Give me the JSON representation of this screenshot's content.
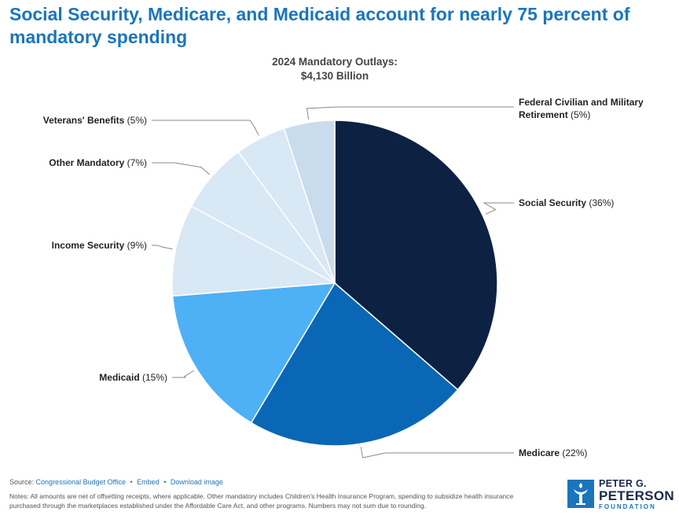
{
  "headline": "Social Security, Medicare, and Medicaid account for nearly 75 percent of mandatory spending",
  "chart_data": {
    "type": "pie",
    "title": "2024 Mandatory Outlays:",
    "subtitle": "$4,130 Billion",
    "start_angle_deg": 0,
    "direction": "clockwise",
    "slices": [
      {
        "name": "Social Security",
        "pct_label": "(36%)",
        "value": 36,
        "color": "#0d2142"
      },
      {
        "name": "Medicare",
        "pct_label": "(22%)",
        "value": 22,
        "color": "#0967b5"
      },
      {
        "name": "Medicaid",
        "pct_label": "(15%)",
        "value": 15,
        "color": "#4eb0f5"
      },
      {
        "name": "Income Security",
        "pct_label": "(9%)",
        "value": 9,
        "color": "#d9e8f5"
      },
      {
        "name": "Other Mandatory",
        "pct_label": "(7%)",
        "value": 7,
        "color": "#d9e8f5"
      },
      {
        "name": "Veterans' Benefits",
        "pct_label": "(5%)",
        "value": 5,
        "color": "#d9e8f5"
      },
      {
        "name": "Federal Civilian and Military Retirement",
        "pct_label": "(5%)",
        "value": 5,
        "color": "#c9dced",
        "name_line1": "Federal Civilian and Military",
        "name_line2": "Retirement"
      }
    ]
  },
  "footer": {
    "source_prefix": "Source:",
    "source_link": "Congressional Budget Office",
    "embed_link": "Embed",
    "download_link": "Download image",
    "separator": "•",
    "notes": "Notes: All amounts are net of offsetting receipts, where applicable. Other mandatory includes Children's Health Insurance Program, spending to subsidize health insurance purchased through the marketplaces established under the Affordable Care Act, and other programs. Numbers may not sum due to rounding."
  },
  "logo": {
    "line1": "PETER G.",
    "line2": "PETERSON",
    "line3": "FOUNDATION"
  }
}
